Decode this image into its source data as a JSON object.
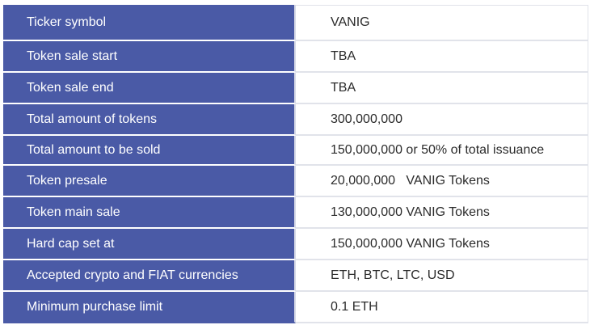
{
  "colors": {
    "label_background": "#4a5aa6",
    "label_text": "#ffffff",
    "value_text": "#2b2b2b",
    "row_divider": "#e1e3ea"
  },
  "token_table": {
    "rows": [
      {
        "label": "Ticker symbol",
        "value": "VANIG"
      },
      {
        "label": "Token sale start",
        "value": "TBA"
      },
      {
        "label": "Token sale end",
        "value": "TBA"
      },
      {
        "label": "Total amount of tokens",
        "value": "300,000,000"
      },
      {
        "label": "Total amount to be sold",
        "value": "150,000,000 or 50% of total issuance"
      },
      {
        "label": "Token presale",
        "value": "20,000,000   VANIG Tokens"
      },
      {
        "label": "Token main sale",
        "value": "130,000,000 VANIG Tokens"
      },
      {
        "label": "Hard cap set at",
        "value": "150,000,000 VANIG Tokens"
      },
      {
        "label": "Accepted crypto and FIAT currencies",
        "value": "ETH, BTC, LTC, USD"
      },
      {
        "label": "Minimum purchase limit",
        "value": "0.1 ETH"
      }
    ]
  }
}
